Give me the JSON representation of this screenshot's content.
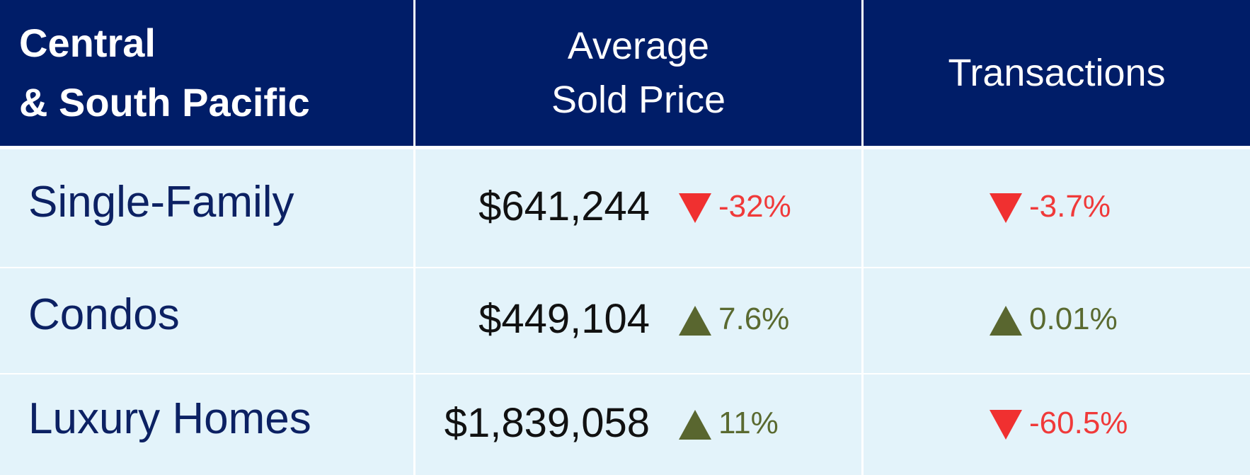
{
  "header": {
    "title": [
      "Central",
      "& South Pacific"
    ],
    "price": [
      "Average",
      "Sold Price"
    ],
    "transactions": [
      "Transactions"
    ]
  },
  "rows": [
    {
      "label": "Single-Family",
      "price": "$641,244",
      "price_change": "-32%",
      "transactions_change": "-3.7%"
    },
    {
      "label": "Condos",
      "price": "$449,104",
      "price_change": "7.6%",
      "transactions_change": "0.01%"
    },
    {
      "label": "Luxury Homes",
      "price": "$1,839,058",
      "price_change": "11%",
      "transactions_change": "-60.5%"
    }
  ]
}
